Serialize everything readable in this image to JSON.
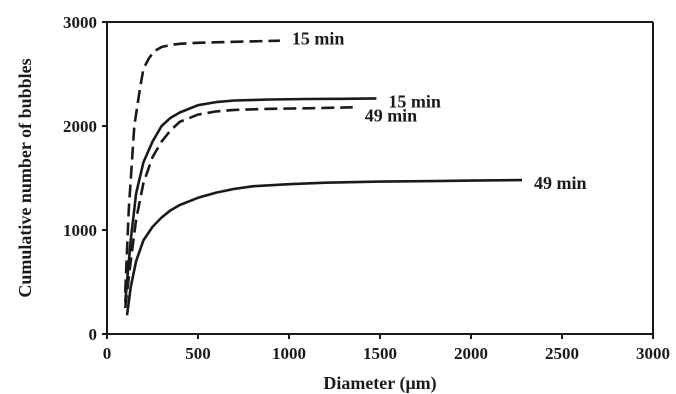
{
  "chart_data": {
    "type": "line",
    "xlabel": "Diameter (μm)",
    "ylabel": "Cumulative number of bubbles",
    "xlim": [
      0,
      3000
    ],
    "ylim": [
      0,
      3000
    ],
    "xticks": [
      "0",
      "500",
      "1000",
      "1500",
      "2000",
      "2500",
      "3000"
    ],
    "yticks": [
      "0",
      "1000",
      "2000",
      "3000"
    ],
    "grid": false,
    "legend": "none",
    "series": [
      {
        "name": "15 min",
        "style": "dashed",
        "x": [
          100,
          120,
          150,
          180,
          200,
          230,
          260,
          300,
          350,
          400,
          500,
          700,
          950
        ],
        "y": [
          400,
          1200,
          2000,
          2350,
          2550,
          2650,
          2720,
          2760,
          2780,
          2790,
          2800,
          2810,
          2820
        ]
      },
      {
        "name": "15 min",
        "style": "solid",
        "x": [
          100,
          130,
          160,
          200,
          250,
          300,
          350,
          400,
          500,
          600,
          700,
          900,
          1100,
          1300,
          1480
        ],
        "y": [
          300,
          900,
          1350,
          1650,
          1850,
          2000,
          2080,
          2130,
          2200,
          2230,
          2245,
          2255,
          2260,
          2262,
          2265
        ]
      },
      {
        "name": "49 min",
        "style": "dashed",
        "x": [
          100,
          130,
          160,
          200,
          250,
          300,
          350,
          400,
          500,
          600,
          700,
          900,
          1100,
          1350
        ],
        "y": [
          250,
          700,
          1100,
          1450,
          1700,
          1850,
          1960,
          2040,
          2110,
          2140,
          2155,
          2165,
          2170,
          2180
        ]
      },
      {
        "name": "49 min",
        "style": "solid",
        "x": [
          110,
          130,
          160,
          200,
          250,
          300,
          350,
          400,
          500,
          600,
          700,
          800,
          1000,
          1200,
          1500,
          1800,
          2000,
          2280
        ],
        "y": [
          180,
          450,
          700,
          900,
          1030,
          1120,
          1190,
          1240,
          1310,
          1360,
          1395,
          1420,
          1440,
          1455,
          1465,
          1470,
          1475,
          1480
        ]
      }
    ]
  }
}
